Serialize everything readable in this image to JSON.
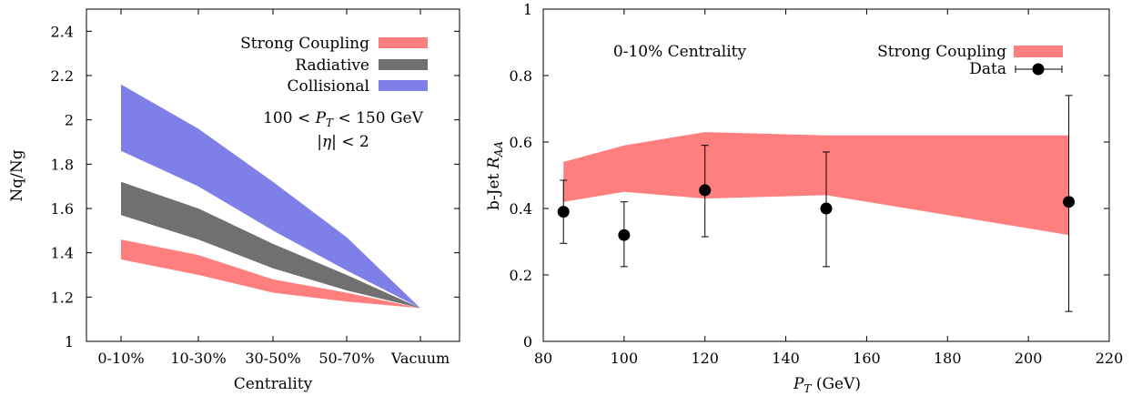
{
  "chart_data": [
    {
      "type": "area",
      "xlabel": "Centrality",
      "ylabel": "Nq/Ng",
      "categories": [
        "0-10%",
        "10-30%",
        "30-50%",
        "50-70%",
        "Vacuum"
      ],
      "ylim": [
        1,
        2.5
      ],
      "yticks": [
        "1",
        "1.2",
        "1.4",
        "1.6",
        "1.8",
        "2",
        "2.2",
        "2.4"
      ],
      "yticks_values": [
        1,
        1.2,
        1.4,
        1.6,
        1.8,
        2,
        2.2,
        2.4
      ],
      "annotations": [
        "100 < P_T < 150 GeV",
        "|η| < 2"
      ],
      "legend_position": "top-right",
      "grid": false,
      "series": [
        {
          "name": "Strong Coupling",
          "color": "#ff7f7f",
          "lower": [
            1.37,
            1.3,
            1.22,
            1.18,
            1.15
          ],
          "upper": [
            1.46,
            1.39,
            1.28,
            1.22,
            1.15
          ]
        },
        {
          "name": "Radiative",
          "color": "#707070",
          "lower": [
            1.57,
            1.46,
            1.33,
            1.23,
            1.15
          ],
          "upper": [
            1.72,
            1.6,
            1.44,
            1.3,
            1.15
          ]
        },
        {
          "name": "Collisional",
          "color": "#7f7fe8",
          "lower": [
            1.86,
            1.7,
            1.5,
            1.32,
            1.15
          ],
          "upper": [
            2.16,
            1.96,
            1.72,
            1.47,
            1.15
          ]
        }
      ]
    },
    {
      "type": "area",
      "xlabel": "P_T (GeV)",
      "ylabel": "b-Jet R_AA",
      "xlim": [
        80,
        220
      ],
      "ylim": [
        0,
        1
      ],
      "xticks": [
        "80",
        "100",
        "120",
        "140",
        "160",
        "180",
        "200",
        "220"
      ],
      "xticks_values": [
        80,
        100,
        120,
        140,
        160,
        180,
        200,
        220
      ],
      "yticks": [
        "0",
        "0.2",
        "0.4",
        "0.6",
        "0.8",
        "1"
      ],
      "yticks_values": [
        0,
        0.2,
        0.4,
        0.6,
        0.8,
        1
      ],
      "annotation": "0-10% Centrality",
      "legend_position": "top-right",
      "grid": false,
      "band": {
        "name": "Strong Coupling",
        "color": "#ff7f7f",
        "x": [
          85,
          100,
          120,
          150,
          210
        ],
        "lower": [
          0.42,
          0.45,
          0.43,
          0.44,
          0.32
        ],
        "upper": [
          0.54,
          0.59,
          0.63,
          0.62,
          0.62
        ]
      },
      "points": {
        "name": "Data",
        "color": "#000000",
        "x": [
          85,
          100,
          120,
          150,
          210
        ],
        "y": [
          0.39,
          0.32,
          0.455,
          0.4,
          0.42
        ],
        "err_low": [
          0.295,
          0.225,
          0.315,
          0.225,
          0.09
        ],
        "err_high": [
          0.485,
          0.42,
          0.59,
          0.57,
          0.74
        ]
      }
    }
  ]
}
